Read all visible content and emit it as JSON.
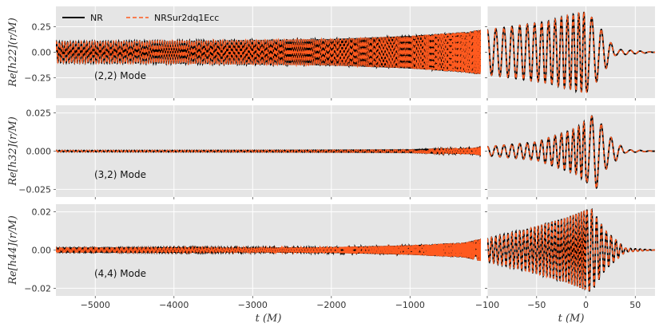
{
  "chart_data": {
    "type": "line",
    "legend": {
      "placement": "top-left",
      "entries": [
        {
          "label": "NR",
          "color": "#000000",
          "style": "solid"
        },
        {
          "label": "NRSur2dq1Ecc",
          "color": "#ff5a1f",
          "style": "dashed"
        }
      ]
    },
    "colors": {
      "nr": "#000000",
      "surrogate": "#ff5a1f",
      "panel_bg": "#e5e5e5",
      "grid": "#ffffff"
    },
    "xlabel": "t (M)",
    "left_xlim": [
      -5500,
      -100
    ],
    "right_xlim": [
      -100,
      70
    ],
    "left_xticks": [
      "−5000",
      "−4000",
      "−3000",
      "−2000",
      "−1000"
    ],
    "left_xtick_values": [
      -5000,
      -4000,
      -3000,
      -2000,
      -1000
    ],
    "right_xticks": [
      "−100",
      "−50",
      "0",
      "50"
    ],
    "right_xtick_values": [
      -100,
      -50,
      0,
      50
    ],
    "panels": [
      {
        "mode": "(2,2) Mode",
        "ylabel": "Re[h22](r/M)",
        "ylim": [
          -0.45,
          0.45
        ],
        "yticks": [
          "0.25",
          "0.00",
          "−0.25"
        ],
        "ytick_values": [
          0.25,
          0.0,
          -0.25
        ],
        "series": [
          {
            "name": "NR",
            "x": [
              -5450,
              -4000,
              -3000,
              -2000,
              -1000,
              -300,
              -100,
              -40,
              -10,
              0,
              10,
              30,
              70
            ],
            "amplitude": [
              0.1,
              0.11,
              0.12,
              0.13,
              0.16,
              0.2,
              0.22,
              0.3,
              0.38,
              0.4,
              0.3,
              0.03,
              0.0
            ]
          },
          {
            "name": "NRSur2dq1Ecc",
            "x": [
              -5450,
              -4000,
              -3000,
              -2000,
              -1000,
              -300,
              -100,
              -40,
              -10,
              0,
              10,
              30,
              70
            ],
            "amplitude": [
              0.1,
              0.11,
              0.12,
              0.13,
              0.16,
              0.2,
              0.22,
              0.3,
              0.38,
              0.4,
              0.3,
              0.03,
              0.0
            ]
          }
        ]
      },
      {
        "mode": "(3,2) Mode",
        "ylabel": "Re[h32](r/M)",
        "ylim": [
          -0.03,
          0.03
        ],
        "yticks": [
          "0.025",
          "0.000",
          "−0.025"
        ],
        "ytick_values": [
          0.025,
          0.0,
          -0.025
        ],
        "series": [
          {
            "name": "NR",
            "x": [
              -5450,
              -3000,
              -1000,
              -200,
              -100,
              -50,
              -10,
              10,
              20,
              40,
              70
            ],
            "amplitude": [
              0.0005,
              0.0006,
              0.0008,
              0.002,
              0.003,
              0.006,
              0.015,
              0.025,
              0.012,
              0.001,
              0.0
            ]
          },
          {
            "name": "NRSur2dq1Ecc",
            "x": [
              -5450,
              -3000,
              -1000,
              -200,
              -100,
              -50,
              -10,
              10,
              20,
              40,
              70
            ],
            "amplitude": [
              0.0005,
              0.0006,
              0.0008,
              0.002,
              0.003,
              0.006,
              0.015,
              0.025,
              0.012,
              0.001,
              0.0
            ]
          }
        ]
      },
      {
        "mode": "(4,4) Mode",
        "ylabel": "Re[h44](r/M)",
        "ylim": [
          -0.024,
          0.024
        ],
        "yticks": [
          "0.02",
          "0.00",
          "−0.02"
        ],
        "ytick_values": [
          0.02,
          0.0,
          -0.02
        ],
        "series": [
          {
            "name": "NR",
            "x": [
              -5450,
              -3000,
              -2000,
              -1000,
              -300,
              -100,
              -60,
              -20,
              0,
              5,
              20,
              40,
              70
            ],
            "amplitude": [
              0.001,
              0.0012,
              0.0015,
              0.0025,
              0.004,
              0.006,
              0.011,
              0.017,
              0.021,
              0.022,
              0.01,
              0.001,
              0.0
            ]
          },
          {
            "name": "NRSur2dq1Ecc",
            "x": [
              -5450,
              -3000,
              -2000,
              -1000,
              -300,
              -100,
              -60,
              -20,
              0,
              5,
              20,
              40,
              70
            ],
            "amplitude": [
              0.001,
              0.0012,
              0.0015,
              0.0025,
              0.004,
              0.006,
              0.011,
              0.017,
              0.021,
              0.022,
              0.01,
              0.001,
              0.0
            ]
          }
        ]
      }
    ]
  }
}
